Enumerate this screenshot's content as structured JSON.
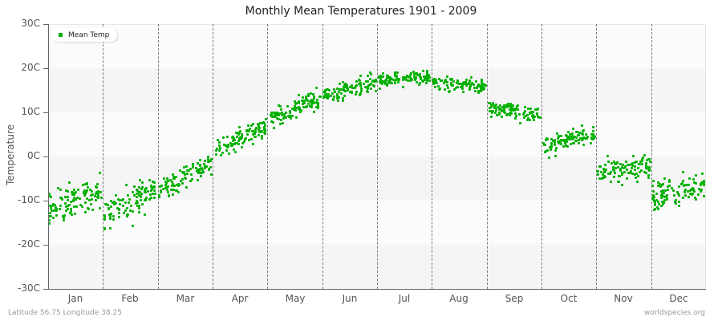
{
  "title": "Monthly Mean Temperatures 1901 - 2009",
  "legend": {
    "label": "Mean Temp",
    "color": "#00b000"
  },
  "footer": {
    "location": "Latitude 56.75 Longitude 38.25",
    "source": "worldspecies.org"
  },
  "colors": {
    "point": "#00b000",
    "band_dark": "#f5f5f5",
    "band_light": "#fbfbfb"
  },
  "chart_data": {
    "type": "scatter",
    "title": "Monthly Mean Temperatures 1901 - 2009",
    "xlabel": "",
    "ylabel": "Temperature",
    "ylim": [
      -30,
      30
    ],
    "yticks": [
      30,
      20,
      10,
      0,
      -10,
      -20,
      -30
    ],
    "ytick_labels": [
      "30C",
      "20C",
      "10C",
      "0C",
      "-10C",
      "-20C",
      "-30C"
    ],
    "categories": [
      "Jan",
      "Feb",
      "Mar",
      "Apr",
      "May",
      "Jun",
      "Jul",
      "Aug",
      "Sep",
      "Oct",
      "Nov",
      "Dec"
    ],
    "legend": {
      "entries": [
        "Mean Temp"
      ],
      "position": "top-left"
    },
    "grid": "alternating horizontal bands, dashed vertical month dividers",
    "years": [
      1901,
      2009
    ],
    "points_per_month": 109,
    "series": [
      {
        "name": "Mean Temp",
        "monthly_stats": [
          {
            "month": "Jan",
            "mean": -10.0,
            "spread": 3.8,
            "trend": 4.0,
            "min": -21,
            "max": -3
          },
          {
            "month": "Feb",
            "mean": -10.0,
            "spread": 3.6,
            "trend": 6.0,
            "min": -19,
            "max": -1
          },
          {
            "month": "Mar",
            "mean": -4.5,
            "spread": 2.6,
            "trend": 6.0,
            "min": -12,
            "max": 0
          },
          {
            "month": "Apr",
            "mean": 4.0,
            "spread": 2.2,
            "trend": 5.0,
            "min": -1,
            "max": 10
          },
          {
            "month": "May",
            "mean": 11.0,
            "spread": 2.2,
            "trend": 5.0,
            "min": 5,
            "max": 17
          },
          {
            "month": "Jun",
            "mean": 15.5,
            "spread": 1.7,
            "trend": 3.0,
            "min": 11,
            "max": 20
          },
          {
            "month": "Jul",
            "mean": 17.8,
            "spread": 1.5,
            "trend": 1.0,
            "min": 14,
            "max": 23
          },
          {
            "month": "Aug",
            "mean": 16.5,
            "spread": 1.5,
            "trend": -1.0,
            "min": 12,
            "max": 21
          },
          {
            "month": "Sep",
            "mean": 10.5,
            "spread": 1.6,
            "trend": -2.0,
            "min": 6,
            "max": 15
          },
          {
            "month": "Oct",
            "mean": 3.8,
            "spread": 2.0,
            "trend": 3.0,
            "min": -1,
            "max": 8
          },
          {
            "month": "Nov",
            "mean": -2.8,
            "spread": 2.5,
            "trend": 1.0,
            "min": -9,
            "max": 3
          },
          {
            "month": "Dec",
            "mean": -7.8,
            "spread": 3.2,
            "trend": 3.0,
            "min": -16,
            "max": 1
          }
        ]
      }
    ]
  }
}
